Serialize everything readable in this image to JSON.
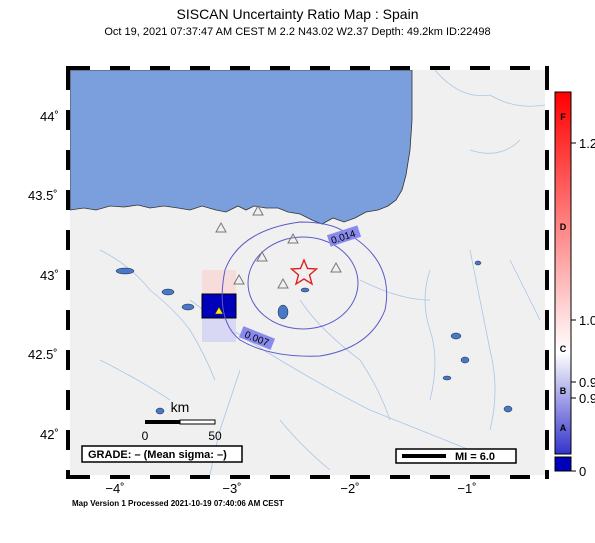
{
  "header": {
    "title": "SISCAN Uncertainty Ratio Map : Spain",
    "subtitle": "Oct 19, 2021 07:37:47 AM CEST   M 2.2   N43.02 W2.37   Depth: 49.2km   ID:22498"
  },
  "map": {
    "lat_labels": [
      "44˚",
      "43.5˚",
      "43˚",
      "42.5˚",
      "42˚"
    ],
    "lon_labels": [
      "−4˚",
      "−3˚",
      "−2˚",
      "−1˚"
    ],
    "contour_labels": [
      "0.014",
      "0.007"
    ],
    "scale_bar": {
      "unit": "km",
      "ticks": [
        "0",
        "50"
      ]
    },
    "grade_text": "GRADE: – (Mean sigma: –)",
    "mi_legend": "MI = 6.0"
  },
  "colorbar": {
    "letters": [
      "F",
      "D",
      "C",
      "B",
      "A"
    ],
    "values": [
      "1.2",
      "1.0",
      "0.9",
      "0.9",
      "0"
    ]
  },
  "footer": "Map Version 1 Processed 2021-10-19 07:40:06 AM CEST",
  "colors": {
    "sea": "#7a9fdc",
    "land": "#f0f0f0",
    "epicenter": "#dd2222",
    "cell": "#0000bb"
  }
}
